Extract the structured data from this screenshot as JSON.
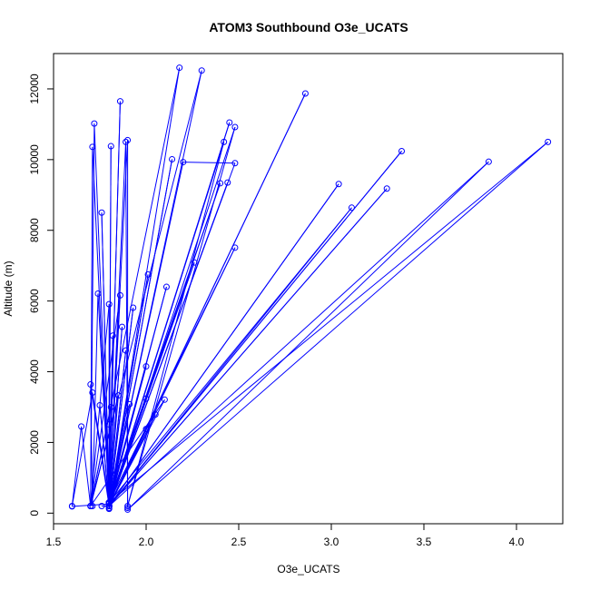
{
  "chart_data": {
    "type": "line",
    "title": "ATOM3 Southbound O3e_UCATS",
    "xlabel": "O3e_UCATS",
    "ylabel": "Altitude (m)",
    "xlim": [
      1.5,
      4.25
    ],
    "ylim": [
      -300,
      13000
    ],
    "xticks": [
      "1.5",
      "2.0",
      "2.5",
      "3.0",
      "3.5",
      "4.0"
    ],
    "xtick_values": [
      1.5,
      2.0,
      2.5,
      3.0,
      3.5,
      4.0
    ],
    "yticks": [
      "0",
      "2000",
      "4000",
      "6000",
      "8000",
      "10000",
      "12000"
    ],
    "ytick_values": [
      0,
      2000,
      4000,
      6000,
      8000,
      10000,
      12000
    ],
    "grid": false,
    "line_color": "#0000ff",
    "marker": "open-circle",
    "series": [
      {
        "points": [
          [
            1.6,
            190
          ],
          [
            1.8,
            260
          ],
          [
            1.72,
            11020
          ],
          [
            1.7,
            200
          ],
          [
            1.71,
            10360
          ],
          [
            1.8,
            200
          ],
          [
            1.76,
            8500
          ],
          [
            1.8,
            300
          ],
          [
            1.74,
            6210
          ],
          [
            1.71,
            200
          ],
          [
            1.7,
            3640
          ],
          [
            1.8,
            200
          ],
          [
            1.86,
            11650
          ],
          [
            1.8,
            120
          ],
          [
            1.81,
            10380
          ],
          [
            1.8,
            200
          ],
          [
            1.89,
            10500
          ],
          [
            1.9,
            150
          ],
          [
            1.9,
            10550
          ],
          [
            1.8,
            200
          ],
          [
            2.18,
            12600
          ],
          [
            1.7,
            200
          ],
          [
            2.3,
            12520
          ],
          [
            1.8,
            200
          ],
          [
            2.86,
            11870
          ],
          [
            1.8,
            200
          ],
          [
            2.45,
            11050
          ],
          [
            1.8,
            150
          ],
          [
            2.48,
            10920
          ],
          [
            1.9,
            200
          ],
          [
            2.42,
            10500
          ],
          [
            1.8,
            200
          ],
          [
            3.38,
            10240
          ],
          [
            1.8,
            200
          ],
          [
            2.14,
            10010
          ],
          [
            1.8,
            200
          ],
          [
            2.2,
            9930
          ],
          [
            2.48,
            9900
          ],
          [
            1.8,
            200
          ],
          [
            3.85,
            9940
          ],
          [
            1.9,
            100
          ],
          [
            4.17,
            10500
          ],
          [
            1.8,
            300
          ],
          [
            2.4,
            9330
          ],
          [
            1.8,
            200
          ],
          [
            3.04,
            9310
          ],
          [
            1.8,
            200
          ],
          [
            3.3,
            9180
          ],
          [
            1.8,
            200
          ],
          [
            2.44,
            9350
          ],
          [
            1.8,
            200
          ],
          [
            3.11,
            8640
          ],
          [
            1.8,
            300
          ],
          [
            2.48,
            7510
          ],
          [
            1.8,
            200
          ],
          [
            2.26,
            7090
          ],
          [
            1.8,
            300
          ],
          [
            2.11,
            6400
          ],
          [
            1.8,
            200
          ],
          [
            2.01,
            6750
          ],
          [
            1.8,
            200
          ],
          [
            1.8,
            5910
          ],
          [
            1.7,
            200
          ],
          [
            1.86,
            6160
          ],
          [
            1.8,
            200
          ],
          [
            1.87,
            5270
          ],
          [
            1.8,
            200
          ],
          [
            1.93,
            5810
          ],
          [
            1.8,
            200
          ],
          [
            1.82,
            5020
          ],
          [
            1.8,
            200
          ],
          [
            1.89,
            4600
          ],
          [
            1.8,
            200
          ],
          [
            2.0,
            4150
          ],
          [
            1.8,
            300
          ],
          [
            1.85,
            3330
          ],
          [
            1.7,
            200
          ],
          [
            2.1,
            3210
          ],
          [
            1.8,
            200
          ],
          [
            2.05,
            2790
          ],
          [
            1.8,
            200
          ],
          [
            2.0,
            2380
          ],
          [
            1.8,
            200
          ],
          [
            1.81,
            3000
          ],
          [
            1.7,
            200
          ],
          [
            1.65,
            2450
          ],
          [
            1.6,
            200
          ],
          [
            1.71,
            3410
          ],
          [
            1.8,
            300
          ],
          [
            1.75,
            3050
          ],
          [
            1.8,
            200
          ],
          [
            1.91,
            3080
          ],
          [
            1.8,
            200
          ],
          [
            2.0,
            3240
          ],
          [
            1.8,
            300
          ],
          [
            1.8,
            2510
          ],
          [
            1.8,
            200
          ],
          [
            1.76,
            200
          ]
        ]
      }
    ]
  }
}
